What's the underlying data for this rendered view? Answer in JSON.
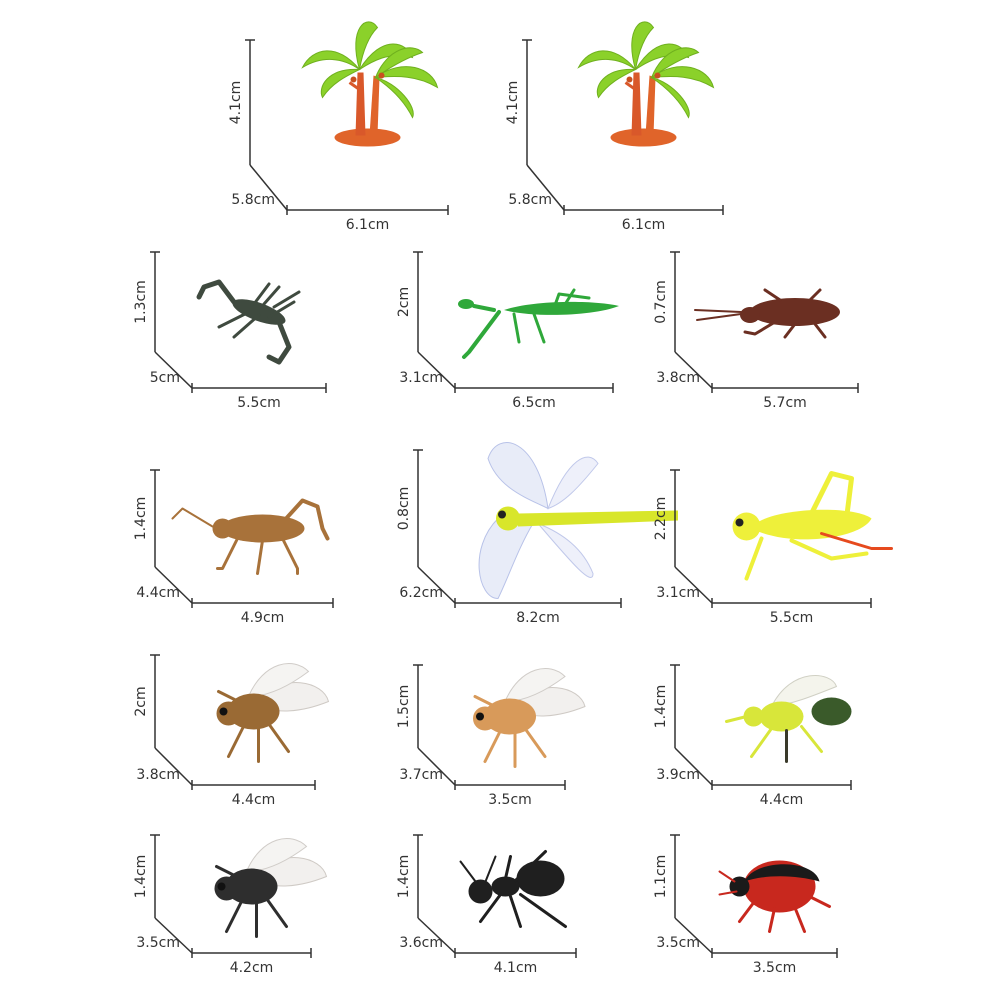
{
  "colors": {
    "background": "#ffffff",
    "dimension_line": "#333333",
    "palm_leaf": "#8bd12a",
    "palm_trunk": "#e0642a",
    "scorpion": "#3f4a3f",
    "mantis": "#2fa83a",
    "cockroach": "#6b2f22",
    "cricket": "#a8723a",
    "dragonfly_body": "#d8e62a",
    "grasshopper": "#eef03a",
    "fly_amber": "#9a6a34",
    "fly_orange": "#d89a5a",
    "bee": "#d8e63a",
    "fly_dark": "#2e2e2e",
    "ant": "#1f1f1f",
    "ladybug": "#c8281e"
  },
  "toys": [
    {
      "name": "palm-tree",
      "icon": "palm-tree-icon",
      "height": "4.1cm",
      "depth": "5.8cm",
      "width": "6.1cm"
    },
    {
      "name": "palm-tree",
      "icon": "palm-tree-icon",
      "height": "4.1cm",
      "depth": "5.8cm",
      "width": "6.1cm"
    },
    {
      "name": "scorpion",
      "icon": "scorpion-icon",
      "height": "1.3cm",
      "depth": "5cm",
      "width": "5.5cm"
    },
    {
      "name": "mantis",
      "icon": "mantis-icon",
      "height": "2cm",
      "depth": "3.1cm",
      "width": "6.5cm"
    },
    {
      "name": "cockroach",
      "icon": "cockroach-icon",
      "height": "0.7cm",
      "depth": "3.8cm",
      "width": "5.7cm"
    },
    {
      "name": "cricket",
      "icon": "cricket-icon",
      "height": "1.4cm",
      "depth": "4.4cm",
      "width": "4.9cm"
    },
    {
      "name": "dragonfly",
      "icon": "dragonfly-icon",
      "height": "0.8cm",
      "depth": "6.2cm",
      "width": "8.2cm"
    },
    {
      "name": "grasshopper",
      "icon": "grasshopper-icon",
      "height": "2.2cm",
      "depth": "3.1cm",
      "width": "5.5cm"
    },
    {
      "name": "fly-amber",
      "icon": "fly-icon",
      "height": "2cm",
      "depth": "3.8cm",
      "width": "4.4cm"
    },
    {
      "name": "fly-orange",
      "icon": "fly-icon",
      "height": "1.5cm",
      "depth": "3.7cm",
      "width": "3.5cm"
    },
    {
      "name": "bee",
      "icon": "bee-icon",
      "height": "1.4cm",
      "depth": "3.9cm",
      "width": "4.4cm"
    },
    {
      "name": "housefly",
      "icon": "fly-icon",
      "height": "1.4cm",
      "depth": "3.5cm",
      "width": "4.2cm"
    },
    {
      "name": "ant",
      "icon": "ant-icon",
      "height": "1.4cm",
      "depth": "3.6cm",
      "width": "4.1cm"
    },
    {
      "name": "ladybug",
      "icon": "ladybug-icon",
      "height": "1.1cm",
      "depth": "3.5cm",
      "width": "3.5cm"
    }
  ]
}
